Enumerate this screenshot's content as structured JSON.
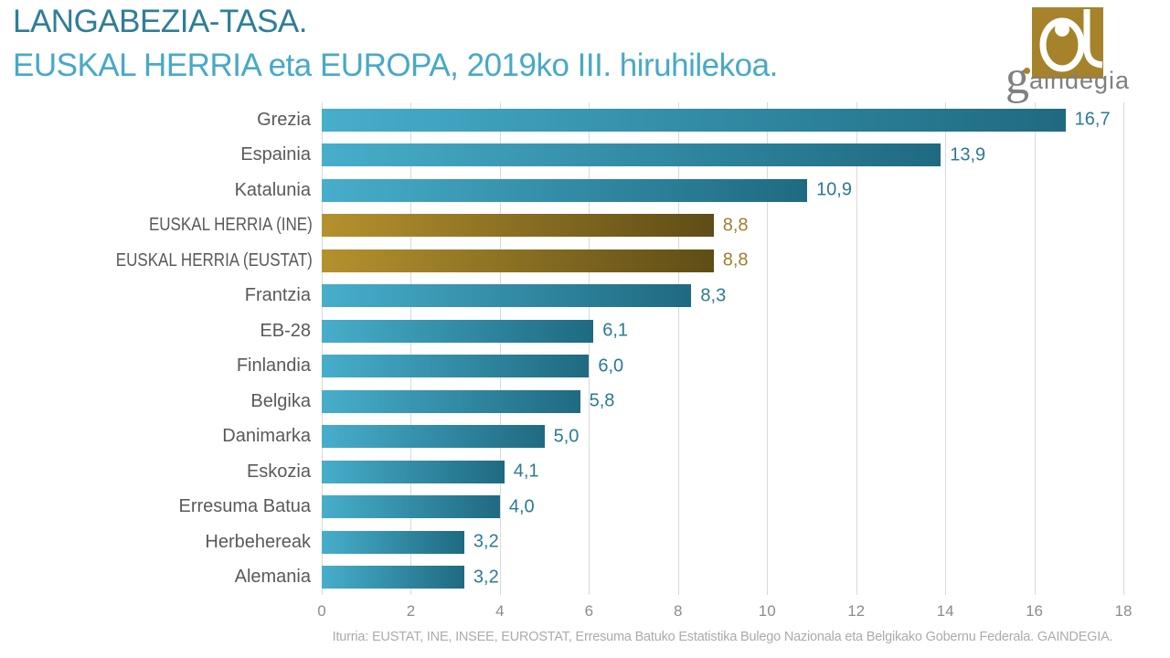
{
  "slide": {
    "title_line1": "LANGABEZIA-TASA.",
    "title_line2": "EUSKAL HERRIA eta EUROPA, 2019ko III. hiruhilekoa.",
    "source": "Iturria: EUSTAT, INE, INSEE, EUROSTAT, Erresuma Batuko Estatistika Bulego Nazionala eta Belgikako Gobernu Federala. GAINDEGIA.",
    "logo": {
      "g": "g",
      "rest": "aindegia"
    }
  },
  "colors": {
    "title1": "#2F7E98",
    "title2": "#47A9C8",
    "category_label": "#595959",
    "value_teal": "#2B7A94",
    "value_gold": "#9C7F2C",
    "gridline": "#D9D9D9",
    "tick": "#8C8C8C",
    "source": "#ABABAB",
    "logo_gold": "#A6832A",
    "logo_text": "#808080",
    "bar_teal": {
      "start": "#47AECB",
      "end": "#1F6A81"
    },
    "bar_gold": {
      "start": "#B5912E",
      "end": "#5F4D16"
    }
  },
  "chart_data": {
    "type": "bar",
    "orientation": "horizontal",
    "title": "LANGABEZIA-TASA. EUSKAL HERRIA eta EUROPA, 2019ko III. hiruhilekoa.",
    "xlabel": "",
    "ylabel": "",
    "xlim": [
      0,
      18
    ],
    "xticks": [
      0,
      2,
      4,
      6,
      8,
      10,
      12,
      14,
      16,
      18
    ],
    "grid": "vertical-light",
    "legend": "none",
    "categories": [
      "Grezia",
      "Espainia",
      "Katalunia",
      "EUSKAL HERRIA (INE)",
      "EUSKAL HERRIA (EUSTAT)",
      "Frantzia",
      "EB-28",
      "Finlandia",
      "Belgika",
      "Danimarka",
      "Eskozia",
      "Erresuma Batua",
      "Herbehereak",
      "Alemania"
    ],
    "values": [
      16.7,
      13.9,
      10.9,
      8.8,
      8.8,
      8.3,
      6.1,
      6.0,
      5.8,
      5.0,
      4.1,
      4.0,
      3.2,
      3.2
    ],
    "rows": [
      {
        "label": "Grezia",
        "value": 16.7,
        "display": "16,7",
        "highlight": false
      },
      {
        "label": "Espainia",
        "value": 13.9,
        "display": "13,9",
        "highlight": false
      },
      {
        "label": "Katalunia",
        "value": 10.9,
        "display": "10,9",
        "highlight": false
      },
      {
        "label": "EUSKAL HERRIA (INE)",
        "value": 8.8,
        "display": "8,8",
        "highlight": true
      },
      {
        "label": "EUSKAL HERRIA (EUSTAT)",
        "value": 8.8,
        "display": "8,8",
        "highlight": true
      },
      {
        "label": "Frantzia",
        "value": 8.3,
        "display": "8,3",
        "highlight": false
      },
      {
        "label": "EB-28",
        "value": 6.1,
        "display": "6,1",
        "highlight": false
      },
      {
        "label": "Finlandia",
        "value": 6.0,
        "display": "6,0",
        "highlight": false
      },
      {
        "label": "Belgika",
        "value": 5.8,
        "display": "5,8",
        "highlight": false
      },
      {
        "label": "Danimarka",
        "value": 5.0,
        "display": "5,0",
        "highlight": false
      },
      {
        "label": "Eskozia",
        "value": 4.1,
        "display": "4,1",
        "highlight": false
      },
      {
        "label": "Erresuma Batua",
        "value": 4.0,
        "display": "4,0",
        "highlight": false
      },
      {
        "label": "Herbehereak",
        "value": 3.2,
        "display": "3,2",
        "highlight": false
      },
      {
        "label": "Alemania",
        "value": 3.2,
        "display": "3,2",
        "highlight": false
      }
    ]
  }
}
